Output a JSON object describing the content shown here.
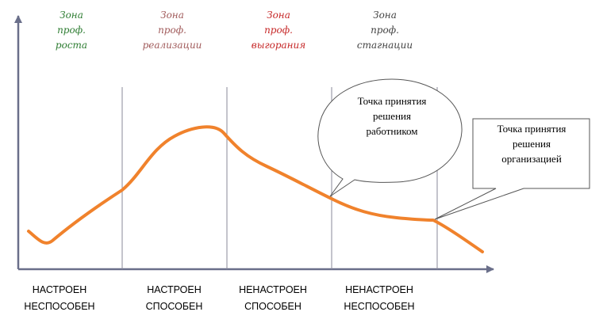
{
  "zones": [
    {
      "lines": [
        "Зона",
        "проф.",
        "роста"
      ],
      "color": "#2e7d32"
    },
    {
      "lines": [
        "Зона",
        "проф.",
        "реализации"
      ],
      "color": "#a05a5a"
    },
    {
      "lines": [
        "Зона",
        "проф.",
        "выгорания"
      ],
      "color": "#c62828"
    },
    {
      "lines": [
        "Зона",
        "проф.",
        "стагнации"
      ],
      "color": "#444444"
    }
  ],
  "bottom_labels": [
    {
      "line1": "НАСТРОЕН",
      "line2": "НЕСПОСОБЕН"
    },
    {
      "line1": "НАСТРОЕН",
      "line2": "СПОСОБЕН"
    },
    {
      "line1": "НЕНАСТРОЕН",
      "line2": "СПОСОБЕН"
    },
    {
      "line1": "НЕНАСТРОЕН",
      "line2": "НЕСПОСОБЕН"
    }
  ],
  "callouts": {
    "employee": {
      "lines": [
        "Точка принятия",
        "решения",
        "работником"
      ]
    },
    "organization": {
      "lines": [
        "Точка принятия",
        "решения",
        "организацией"
      ]
    }
  },
  "colors": {
    "curve": "#f0822c",
    "axis": "#6a6f8a",
    "divider": "#8a8a9a"
  }
}
